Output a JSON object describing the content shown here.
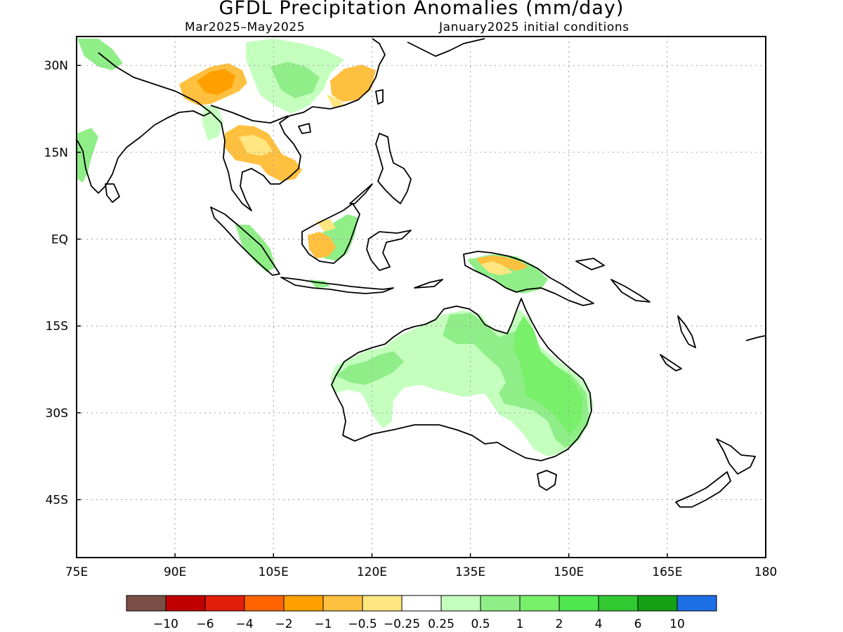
{
  "title": "GFDL Precipitation Anomalies (mm/day)",
  "subtitle_left": "Mar2025–May2025",
  "subtitle_right": "January2025 initial conditions",
  "lon_ticks": [
    {
      "value": 75,
      "label": "75E"
    },
    {
      "value": 90,
      "label": "90E"
    },
    {
      "value": 105,
      "label": "105E"
    },
    {
      "value": 120,
      "label": "120E"
    },
    {
      "value": 135,
      "label": "135E"
    },
    {
      "value": 150,
      "label": "150E"
    },
    {
      "value": 165,
      "label": "165E"
    },
    {
      "value": 180,
      "label": "180"
    }
  ],
  "lat_ticks": [
    {
      "value": 30,
      "label": "30N"
    },
    {
      "value": 15,
      "label": "15N"
    },
    {
      "value": 0,
      "label": "EQ"
    },
    {
      "value": -15,
      "label": "15S"
    },
    {
      "value": -30,
      "label": "30S"
    },
    {
      "value": -45,
      "label": "45S"
    }
  ],
  "lon_range": [
    75,
    180
  ],
  "lat_range": [
    -55,
    35
  ],
  "colorbar": {
    "colors": [
      "#7a5046",
      "#bf0000",
      "#e01e0a",
      "#ff6400",
      "#ffa000",
      "#ffc040",
      "#ffe680",
      "#ffffff",
      "#c4ffbe",
      "#90ee88",
      "#78f06a",
      "#50e650",
      "#32c832",
      "#14a014",
      "#1e6ee6"
    ],
    "labels": [
      "−10",
      "−6",
      "−4",
      "−2",
      "−1",
      "−0.5",
      "−0.25",
      "0.25",
      "0.5",
      "1",
      "2",
      "4",
      "6",
      "10"
    ]
  }
}
